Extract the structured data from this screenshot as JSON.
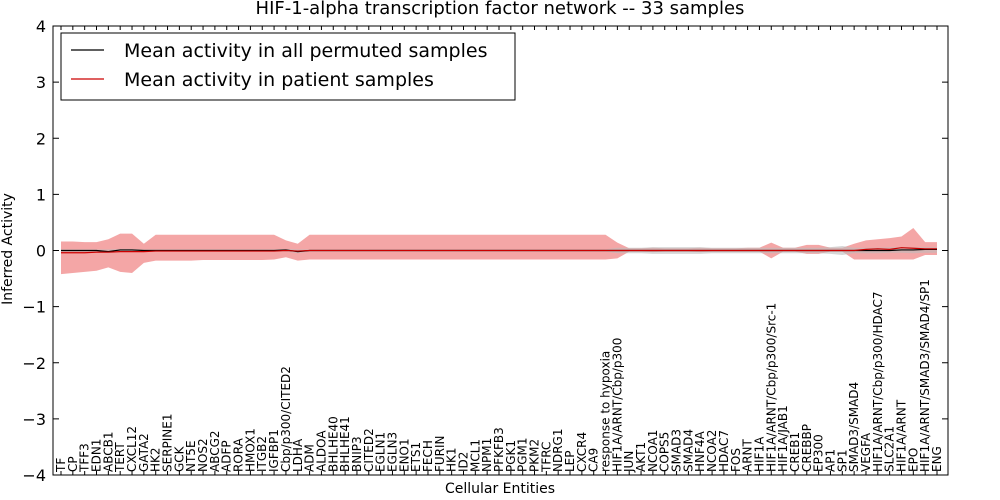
{
  "chart_data": {
    "type": "line",
    "title": "HIF-1-alpha transcription factor network -- 33 samples",
    "xlabel": "Cellular Entities",
    "ylabel": "Inferred Activity",
    "ylim": [
      -4,
      4
    ],
    "yticks": [
      -4,
      -3,
      -2,
      -1,
      0,
      1,
      2,
      3,
      4
    ],
    "grid": false,
    "legend_position": "top-left",
    "colors": {
      "permuted_line": "#000000",
      "patient_line": "#cc0000",
      "patient_band": "#f08080",
      "permuted_band": "#bdbdbd"
    },
    "categories": [
      "TF",
      "CP",
      "TFF3",
      "EDN1",
      "ABCB1",
      "TERT",
      "CXCL12",
      "GATA2",
      "HK2",
      "SERPINE1",
      "GCK",
      "NT5E",
      "NOS2",
      "ABCG2",
      "ADFP",
      "RORA",
      "HMOX1",
      "ITGB2",
      "IGFBP1",
      "Cbp/p300/CITED2",
      "LDHA",
      "ADM",
      "ALDOA",
      "BHLHE40",
      "BHLHE41",
      "BNIP3",
      "CITED2",
      "EGLN1",
      "EGLN3",
      "ENO1",
      "ETS1",
      "FECH",
      "FURIN",
      "HK1",
      "ID2",
      "MCL1",
      "NPM1",
      "PFKFB3",
      "PGK1",
      "PGM1",
      "PKM2",
      "TFRC",
      "NDRG1",
      "LEP",
      "CXCR4",
      "CA9",
      "response to hypoxia",
      "HIF1A/ARNT/Cbp/p300",
      "JUN",
      "AKT1",
      "NCOA1",
      "COPS5",
      "SMAD3",
      "SMAD4",
      "HNF4A",
      "NCOA2",
      "HDAC7",
      "FOS",
      "ARNT",
      "HIF1A",
      "HIF1A/ARNT/Cbp/p300/Src-1",
      "HIF1A/JAB1",
      "CREB1",
      "CREBBP",
      "EP300",
      "AP1",
      "SP1",
      "SMAD3/SMAD4",
      "VEGFA",
      "HIF1A/ARNT/Cbp/p300/HDAC7",
      "SLC2A1",
      "HIF1A/ARNT",
      "EPO",
      "HIF1A/ARNT/SMAD3/SMAD4/SP1",
      "ENG"
    ],
    "series": [
      {
        "name": "Mean activity in all permuted samples",
        "values": [
          0,
          0,
          0,
          0,
          -0.02,
          0.01,
          0.01,
          0,
          0,
          0,
          0,
          0,
          0,
          0,
          0,
          0,
          0,
          0,
          0,
          0.01,
          -0.02,
          0,
          0,
          0,
          0,
          0,
          0,
          0,
          0,
          0,
          0,
          0,
          0,
          0,
          0,
          0,
          0,
          0,
          0,
          0,
          0,
          0,
          0,
          0,
          0,
          0,
          0,
          0,
          0,
          0,
          0,
          0,
          0,
          0,
          0,
          0,
          0,
          0,
          0,
          0,
          0,
          0,
          0,
          0,
          0,
          0,
          0,
          0,
          0,
          0,
          0,
          0.01,
          0.01,
          0.02,
          0.02
        ],
        "band_low": [
          -0.02,
          -0.02,
          -0.02,
          -0.02,
          -0.05,
          -0.02,
          -0.02,
          -0.02,
          -0.02,
          -0.02,
          -0.02,
          -0.02,
          -0.02,
          -0.02,
          -0.02,
          -0.02,
          -0.02,
          -0.02,
          -0.02,
          -0.02,
          -0.05,
          -0.02,
          -0.02,
          -0.02,
          -0.02,
          -0.02,
          -0.02,
          -0.02,
          -0.02,
          -0.02,
          -0.02,
          -0.02,
          -0.02,
          -0.02,
          -0.02,
          -0.02,
          -0.02,
          -0.02,
          -0.02,
          -0.02,
          -0.02,
          -0.02,
          -0.02,
          -0.02,
          -0.02,
          -0.02,
          -0.02,
          -0.05,
          -0.05,
          -0.05,
          -0.06,
          -0.06,
          -0.06,
          -0.06,
          -0.06,
          -0.05,
          -0.05,
          -0.05,
          -0.05,
          -0.05,
          -0.05,
          -0.05,
          -0.05,
          -0.05,
          -0.05,
          -0.06,
          -0.08,
          -0.05,
          -0.05,
          -0.05,
          -0.04,
          -0.04,
          -0.05,
          -0.04,
          -0.04
        ],
        "band_high": [
          0.02,
          0.02,
          0.02,
          0.02,
          0.02,
          0.03,
          0.03,
          0.02,
          0.02,
          0.02,
          0.02,
          0.02,
          0.02,
          0.02,
          0.02,
          0.02,
          0.02,
          0.02,
          0.02,
          0.03,
          0.02,
          0.02,
          0.02,
          0.02,
          0.02,
          0.02,
          0.02,
          0.02,
          0.02,
          0.02,
          0.02,
          0.02,
          0.02,
          0.02,
          0.02,
          0.02,
          0.02,
          0.02,
          0.02,
          0.02,
          0.02,
          0.02,
          0.02,
          0.02,
          0.02,
          0.02,
          0.02,
          0.05,
          0.05,
          0.05,
          0.06,
          0.06,
          0.06,
          0.06,
          0.06,
          0.05,
          0.05,
          0.05,
          0.05,
          0.05,
          0.05,
          0.05,
          0.05,
          0.05,
          0.05,
          0.06,
          0.08,
          0.05,
          0.05,
          0.05,
          0.06,
          0.06,
          0.06,
          0.06,
          0.06
        ]
      },
      {
        "name": "Mean activity in patient samples",
        "values": [
          -0.04,
          -0.04,
          -0.04,
          -0.03,
          -0.03,
          -0.02,
          -0.02,
          -0.02,
          -0.01,
          -0.01,
          -0.01,
          -0.01,
          -0.01,
          -0.01,
          -0.01,
          -0.01,
          -0.01,
          -0.01,
          -0.01,
          0,
          -0.01,
          0,
          0,
          0,
          0,
          0,
          0,
          0,
          0,
          0,
          0,
          0,
          0,
          0,
          0,
          0,
          0,
          0,
          0,
          0,
          0,
          0,
          0,
          0,
          0,
          0,
          0,
          0,
          0,
          0,
          0,
          0,
          0,
          0,
          0,
          0,
          0,
          0,
          0,
          0,
          0,
          0,
          0,
          0,
          0,
          0,
          0,
          0,
          0.02,
          0.03,
          0.02,
          0.05,
          0.04,
          0.03,
          0.03
        ],
        "band_low": [
          -0.42,
          -0.4,
          -0.38,
          -0.36,
          -0.3,
          -0.38,
          -0.4,
          -0.22,
          -0.18,
          -0.18,
          -0.18,
          -0.18,
          -0.17,
          -0.17,
          -0.17,
          -0.17,
          -0.17,
          -0.17,
          -0.16,
          -0.12,
          -0.18,
          -0.16,
          -0.16,
          -0.16,
          -0.16,
          -0.16,
          -0.16,
          -0.16,
          -0.16,
          -0.16,
          -0.16,
          -0.16,
          -0.16,
          -0.16,
          -0.16,
          -0.16,
          -0.16,
          -0.16,
          -0.16,
          -0.16,
          -0.16,
          -0.16,
          -0.16,
          -0.16,
          -0.16,
          -0.16,
          -0.16,
          -0.14,
          -0.02,
          -0.02,
          -0.03,
          -0.02,
          -0.02,
          -0.02,
          -0.03,
          -0.02,
          -0.02,
          -0.02,
          -0.02,
          -0.02,
          -0.14,
          -0.02,
          -0.02,
          -0.06,
          -0.06,
          -0.02,
          -0.02,
          -0.16,
          -0.16,
          -0.16,
          -0.16,
          -0.16,
          -0.16,
          -0.08,
          -0.08
        ],
        "band_high": [
          0.16,
          0.16,
          0.15,
          0.15,
          0.2,
          0.3,
          0.3,
          0.12,
          0.28,
          0.28,
          0.28,
          0.28,
          0.28,
          0.28,
          0.28,
          0.28,
          0.28,
          0.28,
          0.28,
          0.18,
          0.12,
          0.28,
          0.28,
          0.28,
          0.28,
          0.28,
          0.28,
          0.28,
          0.28,
          0.28,
          0.28,
          0.28,
          0.28,
          0.28,
          0.28,
          0.28,
          0.28,
          0.28,
          0.28,
          0.28,
          0.28,
          0.28,
          0.28,
          0.28,
          0.28,
          0.28,
          0.28,
          0.14,
          0.04,
          0.04,
          0.05,
          0.04,
          0.04,
          0.04,
          0.05,
          0.04,
          0.04,
          0.04,
          0.05,
          0.05,
          0.14,
          0.05,
          0.05,
          0.1,
          0.1,
          0.05,
          0.05,
          0.12,
          0.18,
          0.2,
          0.22,
          0.25,
          0.4,
          0.15,
          0.15
        ]
      }
    ]
  }
}
